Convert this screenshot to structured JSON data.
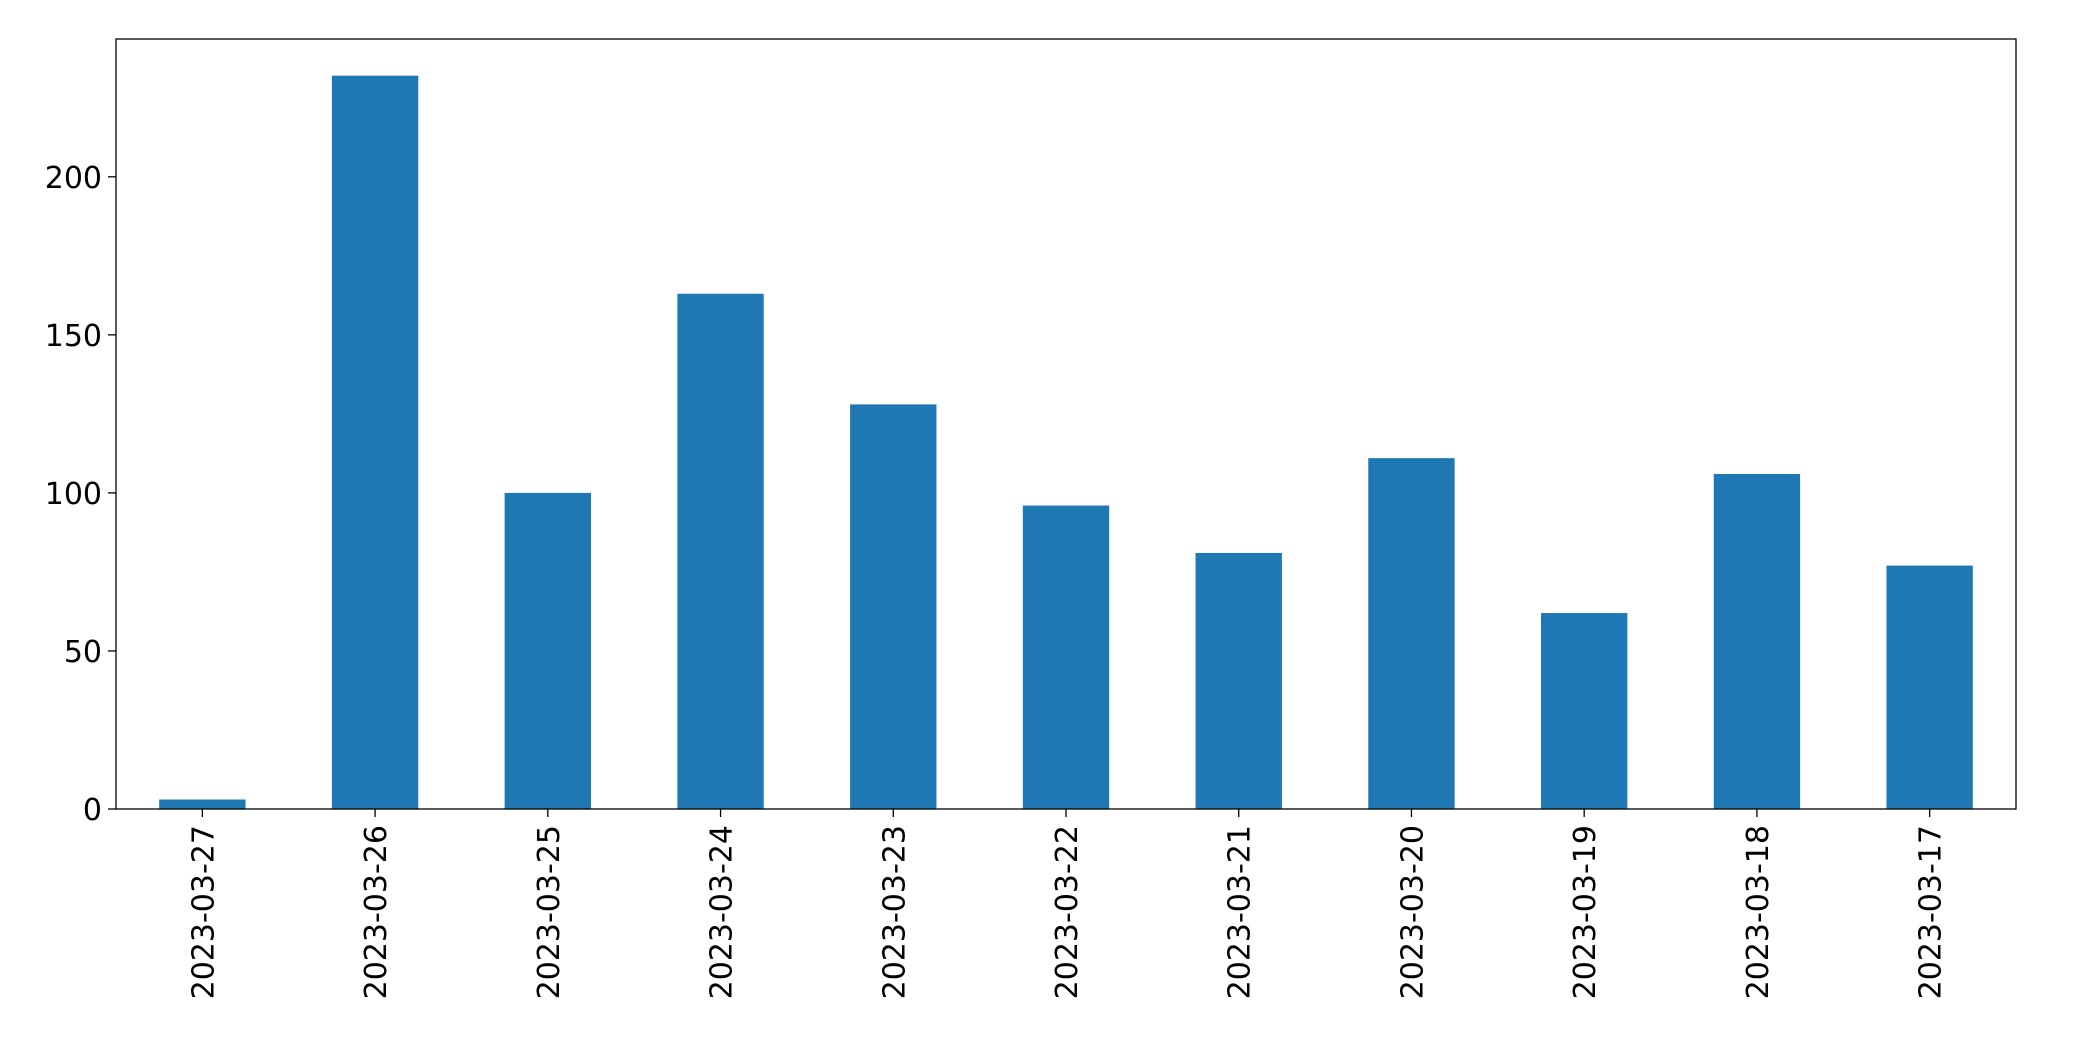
{
  "chart_data": {
    "type": "bar",
    "categories": [
      "2023-03-27",
      "2023-03-26",
      "2023-03-25",
      "2023-03-24",
      "2023-03-23",
      "2023-03-22",
      "2023-03-21",
      "2023-03-20",
      "2023-03-19",
      "2023-03-18",
      "2023-03-17"
    ],
    "values": [
      3,
      232,
      100,
      163,
      128,
      96,
      81,
      111,
      62,
      106,
      77
    ],
    "color": "#1f77b4",
    "ylim": [
      0,
      243.6
    ],
    "yticks": [
      0,
      50,
      100,
      150,
      200
    ],
    "grid": false
  }
}
